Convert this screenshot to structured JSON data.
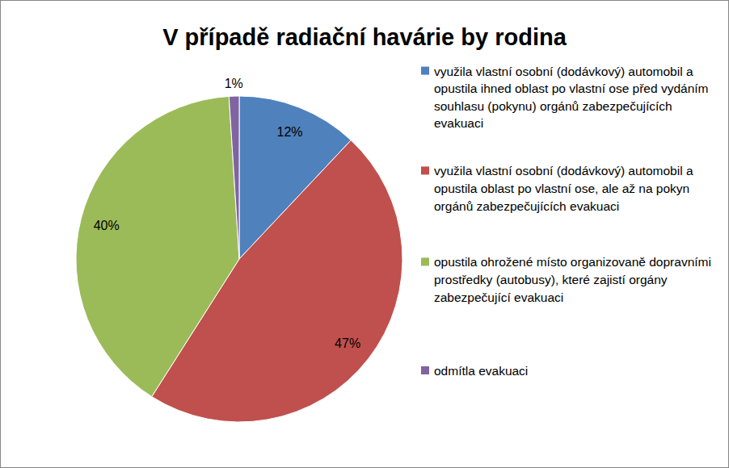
{
  "chart_data": {
    "type": "pie",
    "title": "V případě radiační havárie by rodina",
    "categories": [
      "využila vlastní osobní (dodávkový) automobil a opustila ihned oblast po vlastní ose před vydáním souhlasu (pokynu) orgánů zabezpečujících evakuaci",
      "využila vlastní osobní (dodávkový) automobil a opustila oblast po vlastní ose, ale až na pokyn orgánů zabezpečujících evakuaci",
      "opustila ohrožené místo organizovaně dopravními prostředky (autobusy), které zajistí orgány zabezpečující evakuaci",
      "odmítla evakuaci"
    ],
    "values": [
      12,
      47,
      40,
      1
    ],
    "value_labels": [
      "12%",
      "47%",
      "40%",
      "1%"
    ],
    "colors": [
      "#4f81bd",
      "#c0504d",
      "#9bbb59",
      "#8064a2"
    ],
    "data_labels": true,
    "legend": "right"
  }
}
